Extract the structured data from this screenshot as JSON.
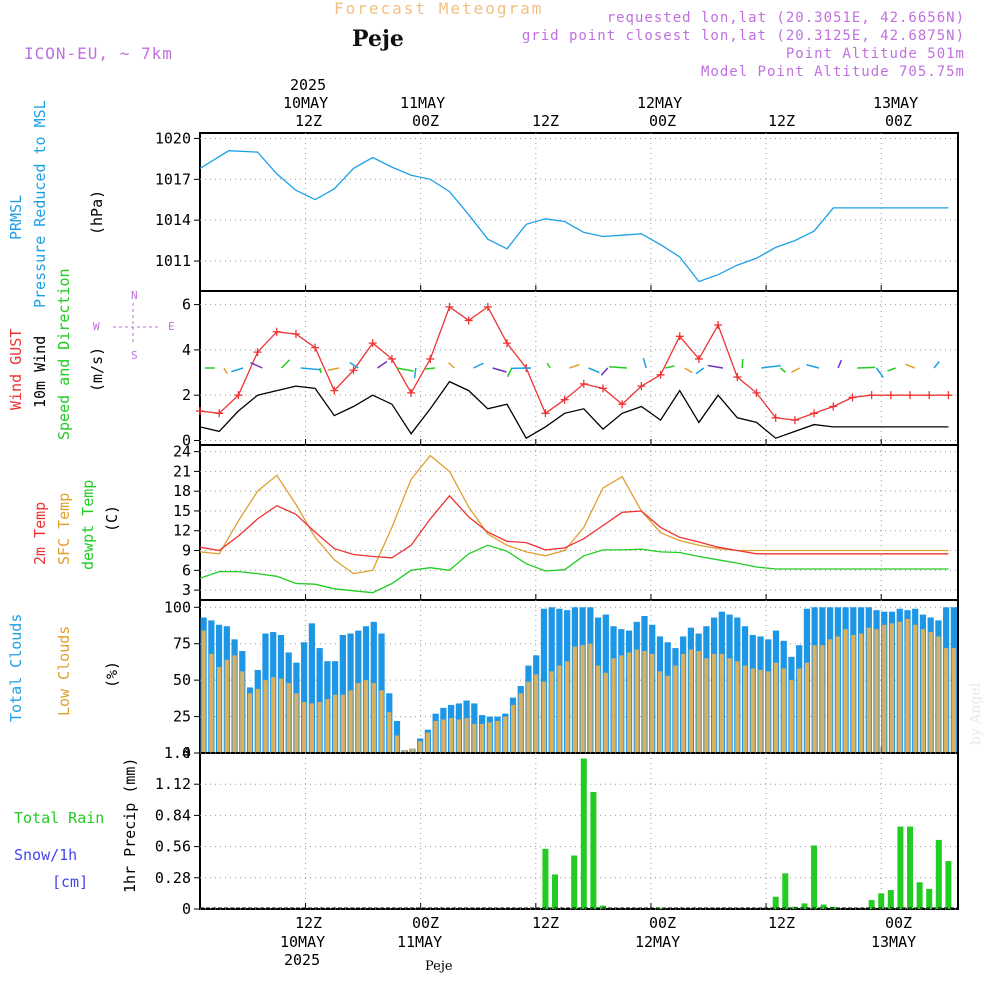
{
  "header": {
    "super_title": "Forecast Meteogram",
    "location": "Peje",
    "model": "ICON-EU, ~ 7km",
    "requested": "requested lon,lat (20.3051E, 42.6656N)",
    "grid_point": "grid point closest lon,lat (20.3125E, 42.6875N)",
    "point_altitude": "Point Altitude 501m",
    "model_altitude": "Model Point Altitude 705.75m"
  },
  "time_axis": {
    "top_year": "2025",
    "bottom_year": "2025",
    "top_row1": [
      "10MAY",
      "11MAY",
      "",
      "12MAY",
      "",
      "13MAY"
    ],
    "top_row2": [
      "12Z",
      "00Z",
      "12Z",
      "00Z",
      "12Z",
      "00Z"
    ],
    "bottom_row1": [
      "12Z",
      "00Z",
      "12Z",
      "00Z",
      "12Z",
      "00Z"
    ],
    "bottom_row2": [
      "10MAY",
      "11MAY",
      "",
      "12MAY",
      "",
      "13MAY"
    ],
    "footer": "Peje"
  },
  "panel_labels": {
    "pressure": [
      "PRMSL",
      "Pressure Reduced to MSL",
      "(hPa)"
    ],
    "wind": [
      "Wind GUST",
      "10m Wind",
      "Speed and Direction",
      "(m/s)"
    ],
    "compass": {
      "n": "N",
      "s": "S",
      "w": "W",
      "e": "E"
    },
    "temp": [
      "2m Temp",
      "SFC Temp",
      "dewpt Temp",
      "(C)"
    ],
    "clouds": [
      "Total Clouds",
      "Low Clouds",
      "(%)"
    ],
    "precip": [
      "Total  Rain",
      "Snow/1h",
      "[cm]",
      "1hr Precip (mm)"
    ]
  },
  "watermark": "by Angel",
  "colors": {
    "pressure": "#1ea0e6",
    "gust": "#ee3333",
    "wind": "#000000",
    "arrows_green": "#22cc22",
    "temp2m": "#ee3333",
    "sfc": "#e0a030",
    "dewpt": "#22cc22",
    "total_clouds": "#1e96e6",
    "low_clouds": "#d8b060",
    "rain": "#22cc22",
    "purple": "#c070e0",
    "header_orange": "#f0c080"
  },
  "chart_data": [
    {
      "type": "line",
      "title": "PRMSL Pressure Reduced to MSL",
      "ylabel": "(hPa)",
      "x_hours": [
        0,
        3,
        6,
        8,
        10,
        12,
        14,
        16,
        18,
        20,
        22,
        24,
        26,
        28,
        30,
        32,
        34,
        36,
        38,
        40,
        42,
        44,
        46,
        48,
        50,
        52,
        54,
        56,
        58,
        60,
        62,
        64,
        66,
        68,
        70,
        72,
        74,
        76,
        78
      ],
      "ylim": [
        1008.8,
        1020.4
      ],
      "yticks": [
        1011,
        1014,
        1017,
        1020
      ],
      "series": [
        {
          "name": "PRMSL",
          "values": [
            1017.8,
            1019.1,
            1019.0,
            1017.4,
            1016.2,
            1015.5,
            1016.3,
            1017.8,
            1018.6,
            1017.9,
            1017.3,
            1017.0,
            1016.1,
            1014.4,
            1012.6,
            1011.9,
            1013.7,
            1014.1,
            1013.9,
            1013.1,
            1012.8,
            1012.9,
            1013.0,
            1012.2,
            1011.3,
            1009.5,
            1010.0,
            1010.7,
            1011.2,
            1012.0,
            1012.5,
            1013.2,
            1014.9,
            1014.9,
            1014.9,
            1014.9,
            1014.9,
            1014.9,
            1014.9
          ]
        }
      ]
    },
    {
      "type": "line",
      "title": "Wind GUST / 10m Wind Speed and Direction",
      "ylabel": "(m/s)",
      "x_hours": [
        0,
        2,
        4,
        6,
        8,
        10,
        12,
        14,
        16,
        18,
        20,
        22,
        24,
        26,
        28,
        30,
        32,
        34,
        36,
        38,
        40,
        42,
        44,
        46,
        48,
        50,
        52,
        54,
        56,
        58,
        60,
        62,
        64,
        66,
        68,
        70,
        72,
        74,
        76,
        78
      ],
      "ylim": [
        -0.2,
        6.6
      ],
      "yticks": [
        0,
        2,
        4,
        6
      ],
      "series": [
        {
          "name": "Wind GUST",
          "values": [
            1.3,
            1.2,
            2.0,
            3.9,
            4.8,
            4.7,
            4.1,
            2.2,
            3.1,
            4.3,
            3.6,
            2.1,
            3.6,
            5.9,
            5.3,
            5.9,
            4.3,
            3.2,
            1.2,
            1.8,
            2.5,
            2.3,
            1.6,
            2.4,
            2.9,
            4.6,
            3.6,
            5.1,
            2.8,
            2.1,
            1.0,
            0.9,
            1.2,
            1.5,
            1.9,
            2.0,
            2.0,
            2.0,
            2.0,
            2.0
          ]
        },
        {
          "name": "10m Wind",
          "values": [
            0.6,
            0.4,
            1.3,
            2.0,
            2.2,
            2.4,
            2.3,
            1.1,
            1.5,
            2.0,
            1.6,
            0.3,
            1.4,
            2.6,
            2.2,
            1.4,
            1.6,
            0.1,
            0.6,
            1.2,
            1.4,
            0.5,
            1.2,
            1.5,
            0.9,
            2.2,
            0.8,
            2.0,
            1.0,
            0.8,
            0.1,
            0.4,
            0.7,
            0.6,
            0.6,
            0.6,
            0.6,
            0.6,
            0.6,
            0.6
          ]
        }
      ]
    },
    {
      "type": "line",
      "title": "2m Temp / SFC Temp / dewpt Temp",
      "ylabel": "(C)",
      "x_hours": [
        0,
        2,
        4,
        6,
        8,
        10,
        12,
        14,
        16,
        18,
        20,
        22,
        24,
        26,
        28,
        30,
        32,
        34,
        36,
        38,
        40,
        42,
        44,
        46,
        48,
        50,
        52,
        54,
        56,
        58,
        60,
        62,
        64,
        66,
        68,
        70,
        72,
        74,
        76,
        78
      ],
      "ylim": [
        1.5,
        25
      ],
      "yticks": [
        3,
        6,
        9,
        12,
        15,
        18,
        21,
        24
      ],
      "series": [
        {
          "name": "2m Temp",
          "values": [
            9.5,
            9.0,
            11.2,
            13.8,
            15.8,
            14.5,
            11.8,
            9.3,
            8.4,
            8.1,
            7.9,
            9.8,
            13.8,
            17.3,
            14.1,
            11.8,
            10.4,
            10.2,
            9.1,
            9.4,
            10.8,
            12.8,
            14.8,
            15.0,
            12.5,
            11.0,
            10.3,
            9.5,
            9.0,
            8.5,
            8.5,
            8.5,
            8.5,
            8.5,
            8.5,
            8.5,
            8.5,
            8.5,
            8.5,
            8.5
          ]
        },
        {
          "name": "SFC Temp",
          "values": [
            8.8,
            8.5,
            13.5,
            18.0,
            20.4,
            16.0,
            11.0,
            7.6,
            5.5,
            6.0,
            12.5,
            19.8,
            23.4,
            21.0,
            15.6,
            11.5,
            9.8,
            8.8,
            8.2,
            9.0,
            12.5,
            18.5,
            20.2,
            15.0,
            11.7,
            10.5,
            9.8,
            9.3,
            9.0,
            9.0,
            9.0,
            9.0,
            9.0,
            9.0,
            9.0,
            9.0,
            9.0,
            9.0,
            9.0,
            9.0
          ]
        },
        {
          "name": "dewpt Temp",
          "values": [
            4.8,
            5.8,
            5.8,
            5.5,
            5.1,
            4.0,
            3.9,
            3.2,
            2.9,
            2.6,
            4.0,
            6.0,
            6.4,
            6.0,
            8.5,
            9.8,
            8.9,
            7.0,
            5.9,
            6.1,
            8.2,
            9.1,
            9.1,
            9.2,
            8.8,
            8.7,
            8.1,
            7.6,
            7.1,
            6.5,
            6.2,
            6.2,
            6.2,
            6.2,
            6.2,
            6.2,
            6.2,
            6.2,
            6.2,
            6.2
          ]
        }
      ]
    },
    {
      "type": "bar",
      "title": "Total Clouds / Low Clouds",
      "ylabel": "(%)",
      "ylim": [
        0,
        105
      ],
      "yticks": [
        0,
        25,
        50,
        75,
        100
      ],
      "series": [
        {
          "name": "Total Clouds",
          "values": [
            93,
            91,
            88,
            87,
            78,
            70,
            45,
            57,
            82,
            83,
            81,
            69,
            62,
            76,
            89,
            72,
            63,
            63,
            81,
            82,
            84,
            87,
            90,
            82,
            41,
            22,
            2,
            3,
            10,
            16,
            27,
            31,
            33,
            34,
            36,
            34,
            26,
            25,
            25,
            27,
            38,
            46,
            60,
            67,
            99,
            100,
            99,
            98,
            100,
            100,
            100,
            93,
            95,
            87,
            85,
            84,
            90,
            94,
            88,
            80,
            76,
            72,
            80,
            86,
            82,
            87,
            93,
            97,
            95,
            93,
            87,
            81,
            80,
            78,
            84,
            77,
            66,
            74,
            99,
            100,
            100,
            100,
            100,
            100,
            100,
            100,
            100,
            98,
            97,
            97,
            99,
            98,
            99,
            95,
            93,
            91,
            100,
            100
          ]
        },
        {
          "name": "Low Clouds",
          "values": [
            84,
            68,
            59,
            64,
            67,
            56,
            41,
            44,
            50,
            52,
            51,
            48,
            41,
            35,
            34,
            35,
            37,
            40,
            40,
            43,
            48,
            50,
            48,
            43,
            28,
            12,
            2,
            3,
            8,
            14,
            22,
            23,
            24,
            23,
            24,
            20,
            20,
            21,
            22,
            25,
            33,
            41,
            49,
            54,
            49,
            56,
            60,
            63,
            73,
            74,
            75,
            60,
            55,
            65,
            67,
            69,
            71,
            70,
            68,
            56,
            53,
            60,
            68,
            71,
            70,
            65,
            68,
            68,
            65,
            63,
            60,
            58,
            57,
            56,
            62,
            58,
            50,
            58,
            62,
            74,
            74,
            78,
            80,
            85,
            81,
            82,
            86,
            85,
            88,
            89,
            90,
            92,
            88,
            85,
            83,
            80,
            72,
            72
          ]
        }
      ]
    },
    {
      "type": "bar",
      "title": "1hr Precip Total Rain / Snow",
      "ylabel": "1hr Precip (mm)",
      "ylim": [
        0,
        1.4
      ],
      "yticks": [
        0,
        0.28,
        0.56,
        0.84,
        1.12,
        1.4
      ],
      "series": [
        {
          "name": "Total Rain",
          "hours": [
            36,
            37,
            39,
            40,
            41,
            42,
            48,
            60,
            61,
            62,
            63,
            64,
            65,
            66,
            70,
            71,
            72,
            73,
            74,
            75,
            76,
            77,
            78
          ],
          "values": [
            0.54,
            0.31,
            0.48,
            1.35,
            1.05,
            0.03,
            0.01,
            0.11,
            0.32,
            0.02,
            0.05,
            0.57,
            0.04,
            0.02,
            0.08,
            0.14,
            0.17,
            0.74,
            0.74,
            0.24,
            0.18,
            0.62,
            0.43
          ]
        }
      ]
    }
  ]
}
